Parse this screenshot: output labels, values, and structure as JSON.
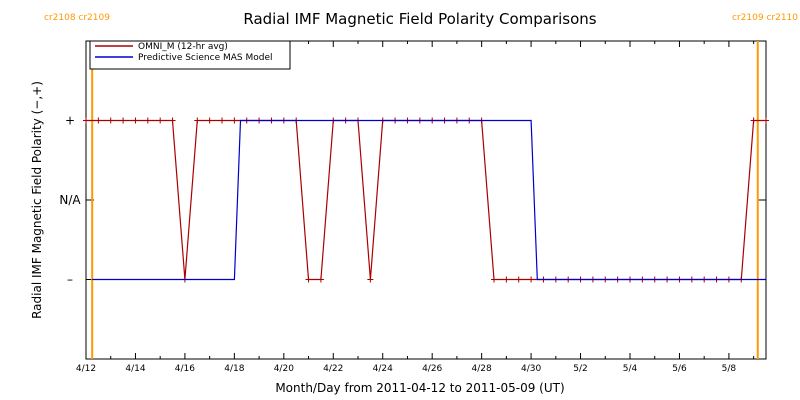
{
  "chart_data": {
    "type": "line",
    "title": "Radial IMF Magnetic Field Polarity Comparisons",
    "xlabel": "Month/Day from 2011-04-12 to 2011-05-09 (UT)",
    "ylabel": "Radial IMF Magnetic Field Polarity (−,+)",
    "xlim": [
      "2011-04-12",
      "2011-05-09T12:00"
    ],
    "ylim": [
      -2,
      2
    ],
    "x_tick_labels": [
      "4/12",
      "4/14",
      "4/16",
      "4/18",
      "4/20",
      "4/22",
      "4/24",
      "4/26",
      "4/28",
      "4/30",
      "5/2",
      "5/4",
      "5/6",
      "5/8"
    ],
    "y_tick_labels": [
      "+",
      "N/A",
      "–"
    ],
    "y_tick_values": [
      1,
      0,
      -1
    ],
    "grid": false,
    "legend_position": "top-left",
    "carrington_markers": [
      {
        "date": "2011-04-12T06:00",
        "label_left": "cr2108",
        "label_right": "cr2109",
        "color": "#ff9900"
      },
      {
        "date": "2011-05-09T04:00",
        "label_left": "cr2109",
        "label_right": "cr2110",
        "color": "#ff9900"
      }
    ],
    "series": [
      {
        "name": "OMNI_M (12-hr avg)",
        "color": "#aa0000",
        "x": [
          "2011-04-12T00:00",
          "2011-04-12T12:00",
          "2011-04-13T00:00",
          "2011-04-13T12:00",
          "2011-04-14T00:00",
          "2011-04-14T12:00",
          "2011-04-15T00:00",
          "2011-04-15T12:00",
          "2011-04-16T00:00",
          "2011-04-16T12:00",
          "2011-04-17T00:00",
          "2011-04-17T12:00",
          "2011-04-18T00:00",
          "2011-04-18T12:00",
          "2011-04-19T00:00",
          "2011-04-19T12:00",
          "2011-04-20T00:00",
          "2011-04-20T12:00",
          "2011-04-21T00:00",
          "2011-04-21T12:00",
          "2011-04-22T00:00",
          "2011-04-22T12:00",
          "2011-04-23T00:00",
          "2011-04-23T12:00",
          "2011-04-24T00:00",
          "2011-04-24T12:00",
          "2011-04-25T00:00",
          "2011-04-25T12:00",
          "2011-04-26T00:00",
          "2011-04-26T12:00",
          "2011-04-27T00:00",
          "2011-04-27T12:00",
          "2011-04-28T00:00",
          "2011-04-28T12:00",
          "2011-04-29T00:00",
          "2011-04-29T12:00",
          "2011-04-30T00:00",
          "2011-04-30T12:00",
          "2011-05-01T00:00",
          "2011-05-01T12:00",
          "2011-05-02T00:00",
          "2011-05-02T12:00",
          "2011-05-03T00:00",
          "2011-05-03T12:00",
          "2011-05-04T00:00",
          "2011-05-04T12:00",
          "2011-05-05T00:00",
          "2011-05-05T12:00",
          "2011-05-06T00:00",
          "2011-05-06T12:00",
          "2011-05-07T00:00",
          "2011-05-07T12:00",
          "2011-05-08T00:00",
          "2011-05-08T12:00",
          "2011-05-09T00:00",
          "2011-05-09T12:00"
        ],
        "values": [
          1,
          1,
          1,
          1,
          1,
          1,
          1,
          1,
          -1,
          1,
          1,
          1,
          1,
          1,
          1,
          1,
          1,
          1,
          -1,
          -1,
          1,
          1,
          1,
          -1,
          1,
          1,
          1,
          1,
          1,
          1,
          1,
          1,
          1,
          -1,
          -1,
          -1,
          -1,
          -1,
          -1,
          -1,
          -1,
          -1,
          -1,
          -1,
          -1,
          -1,
          -1,
          -1,
          -1,
          -1,
          -1,
          -1,
          -1,
          -1,
          1,
          1
        ]
      },
      {
        "name": "Predictive Science MAS Model",
        "color": "#0000cc",
        "x": [
          "2011-04-12T06:00",
          "2011-04-18T00:00",
          "2011-04-18T06:00",
          "2011-04-30T00:00",
          "2011-04-30T06:00",
          "2011-05-09T12:00"
        ],
        "values": [
          -1,
          -1,
          1,
          1,
          -1,
          -1
        ]
      }
    ]
  }
}
